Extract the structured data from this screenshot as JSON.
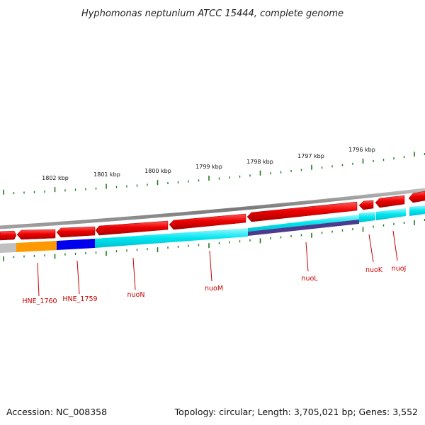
{
  "title": "Hyphomonas neptunium ATCC 15444, complete genome",
  "footer": {
    "accession": "Accession: NC_008358",
    "summary": "Topology: circular; Length: 3,705,021 bp; Genes: 3,552"
  },
  "scale_labels": [
    {
      "text": "1802 kbp",
      "kbp": 1802
    },
    {
      "text": "1801 kbp",
      "kbp": 1801
    },
    {
      "text": "1800 kbp",
      "kbp": 1800
    },
    {
      "text": "1799 kbp",
      "kbp": 1799
    },
    {
      "text": "1798 kbp",
      "kbp": 1798
    },
    {
      "text": "1797 kbp",
      "kbp": 1797
    },
    {
      "text": "1796 kbp",
      "kbp": 1796
    }
  ],
  "gene_labels": [
    {
      "text": "HNE_1760"
    },
    {
      "text": "HNE_1759"
    },
    {
      "text": "nuoN"
    },
    {
      "text": "nuoM"
    },
    {
      "text": "nuoL"
    },
    {
      "text": "nuoK"
    },
    {
      "text": "nuoJ"
    }
  ],
  "colors": {
    "backbone": "#8a8a8a",
    "gene_arrow": "#ee0000",
    "scale_tick": "#1e7a1e",
    "label": "#cc0000",
    "feature_gray": "#c0c0c0",
    "feature_orange": "#ff9900",
    "feature_blue": "#0000ee",
    "feature_cyan": "#00e5ee",
    "feature_purple": "#4b3b8f"
  }
}
